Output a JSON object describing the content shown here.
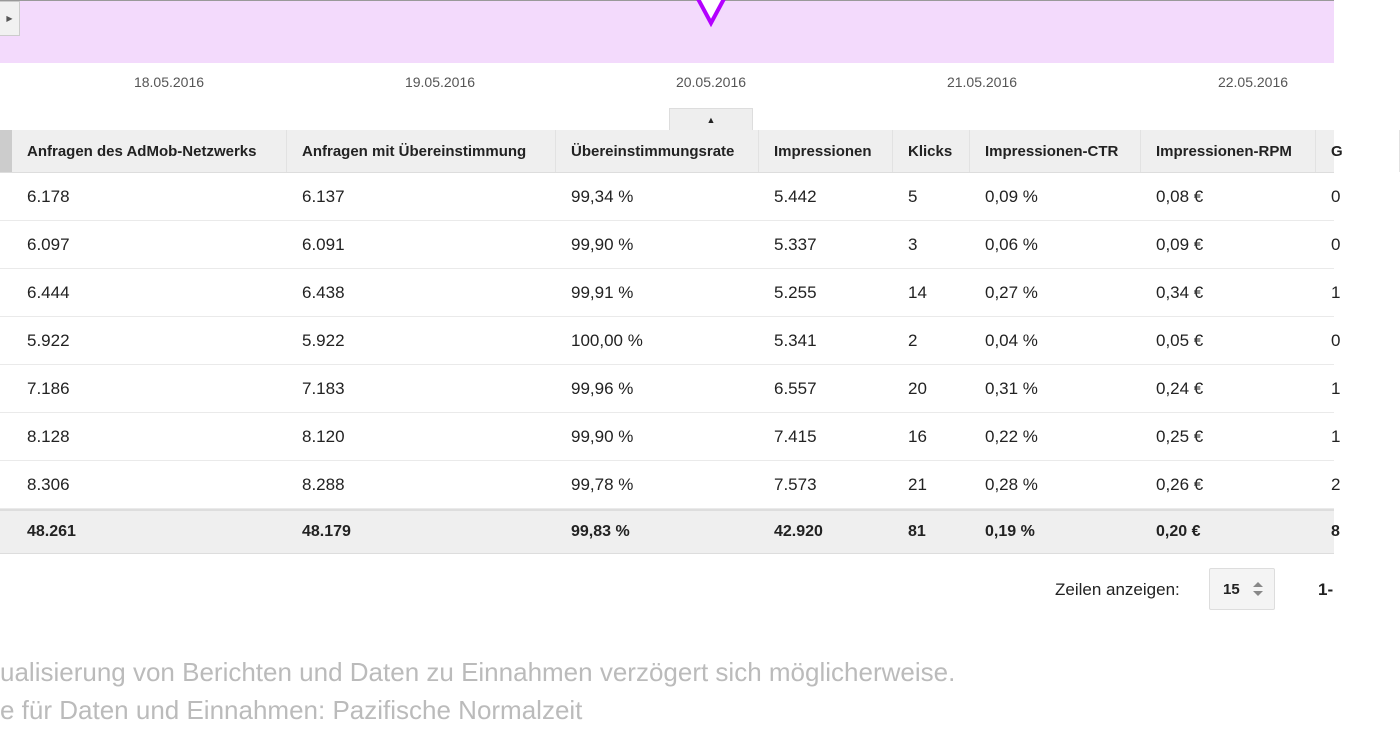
{
  "chart": {
    "accent": "#b300ff",
    "band_color": "#f3dafc",
    "dates": [
      "18.05.2016",
      "19.05.2016",
      "20.05.2016",
      "21.05.2016",
      "22.05.2016"
    ]
  },
  "table": {
    "headers": [
      "Anfragen des AdMob-Netzwerks",
      "Anfragen mit Übereinstimmung",
      "Übereinstimmungsrate",
      "Impressionen",
      "Klicks",
      "Impressionen-CTR",
      "Impressionen-RPM",
      "G"
    ],
    "rows": [
      [
        "6.178",
        "6.137",
        "99,34 %",
        "5.442",
        "5",
        "0,09 %",
        "0,08 €",
        "0"
      ],
      [
        "6.097",
        "6.091",
        "99,90 %",
        "5.337",
        "3",
        "0,06 %",
        "0,09 €",
        "0"
      ],
      [
        "6.444",
        "6.438",
        "99,91 %",
        "5.255",
        "14",
        "0,27 %",
        "0,34 €",
        "1"
      ],
      [
        "5.922",
        "5.922",
        "100,00 %",
        "5.341",
        "2",
        "0,04 %",
        "0,05 €",
        "0"
      ],
      [
        "7.186",
        "7.183",
        "99,96 %",
        "6.557",
        "20",
        "0,31 %",
        "0,24 €",
        "1"
      ],
      [
        "8.128",
        "8.120",
        "99,90 %",
        "7.415",
        "16",
        "0,22 %",
        "0,25 €",
        "1"
      ],
      [
        "8.306",
        "8.288",
        "99,78 %",
        "7.573",
        "21",
        "0,28 %",
        "0,26 €",
        "2"
      ]
    ],
    "totals": [
      "48.261",
      "48.179",
      "99,83 %",
      "42.920",
      "81",
      "0,19 %",
      "0,20 €",
      "8"
    ]
  },
  "pager": {
    "label": "Zeilen anzeigen:",
    "rows_value": "15",
    "range": "1-"
  },
  "notes": [
    "ualisierung von Berichten und Daten zu Einnahmen verzögert sich möglicherweise.",
    "e für Daten und Einnahmen: Pazifische Normalzeit"
  ]
}
